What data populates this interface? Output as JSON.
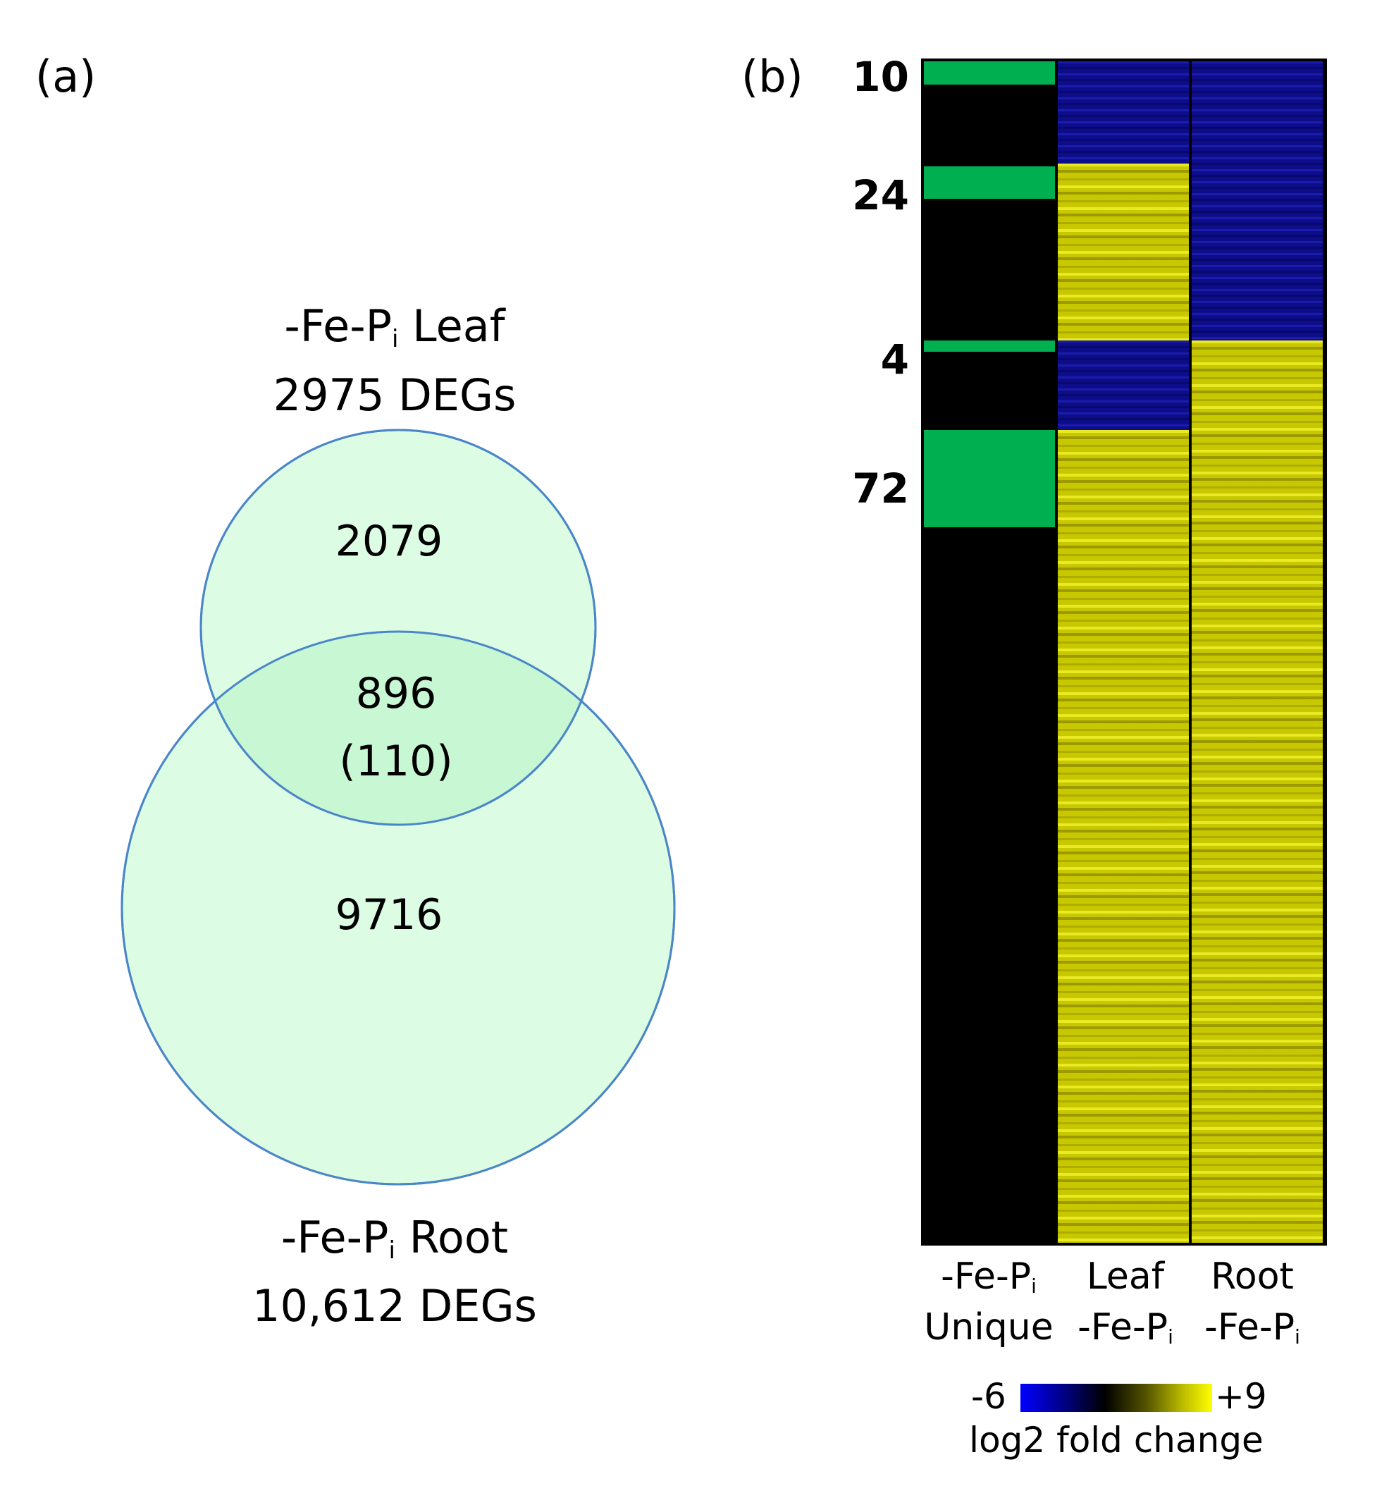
{
  "panel_a": {
    "label": "(a)",
    "leaf": {
      "title_prefix": "-Fe-P",
      "title_sub": "i",
      "title_suffix": " Leaf",
      "degs": "2975 DEGs",
      "unique_count": "2079"
    },
    "root": {
      "title_prefix": "-Fe-P",
      "title_sub": "i",
      "title_suffix": " Root",
      "degs": "10,612 DEGs",
      "unique_count": "9716"
    },
    "overlap": {
      "count": "896",
      "subset": "(110)"
    },
    "colors": {
      "circle_fill": "#dcfde4",
      "overlap_fill": "#c8f7d4",
      "circle_stroke": "#4a86c8"
    }
  },
  "panel_b": {
    "label": "(b)",
    "cluster_counts": [
      "10",
      "24",
      "4",
      "72"
    ],
    "columns": [
      {
        "line1": "-Fe-P",
        "line1_sub": "i",
        "line2": "Unique"
      },
      {
        "line1": "Leaf",
        "line2": "-Fe-P",
        "line2_sub": "i"
      },
      {
        "line1": "Root",
        "line2": "-Fe-P",
        "line2_sub": "i"
      }
    ],
    "scale": {
      "min": "-6",
      "max": "+9",
      "title": "log2 fold change"
    },
    "colors": {
      "unique_highlight": "#00b050",
      "down": "#0d0d8a",
      "up": "#c8c800",
      "background": "#000000"
    }
  }
}
